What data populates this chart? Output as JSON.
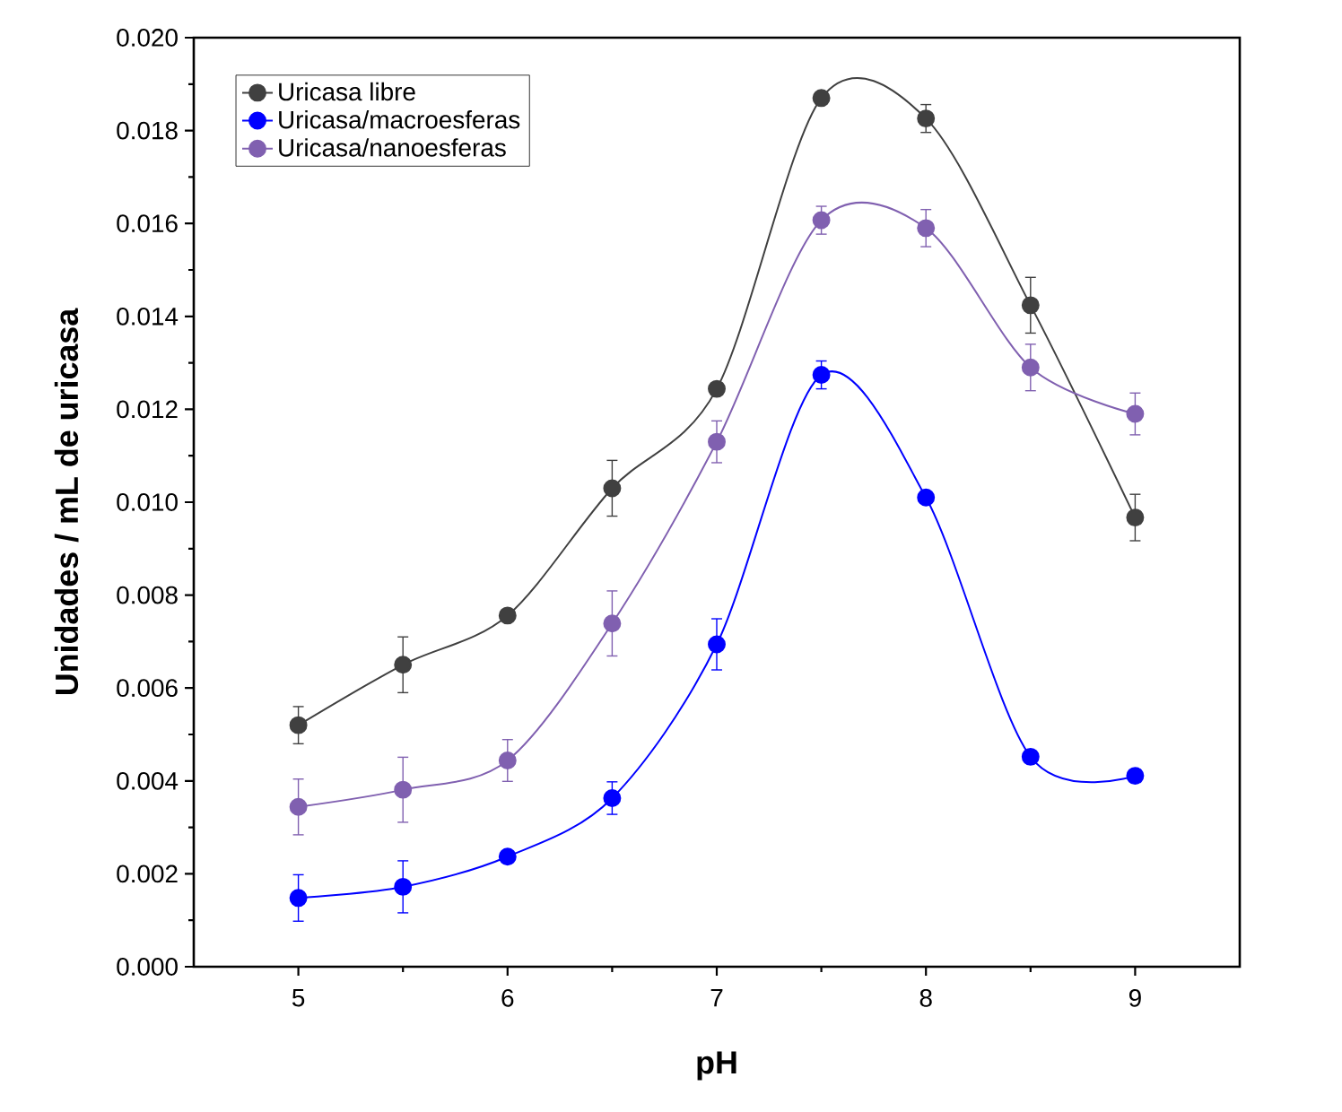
{
  "chart_data": {
    "type": "line",
    "xlabel": "pH",
    "ylabel": "Unidades / mL de uricasa",
    "x": [
      5,
      5.5,
      6,
      6.5,
      7,
      7.5,
      8,
      8.5,
      9
    ],
    "series": [
      {
        "name": "Uricasa libre",
        "color": "#404040",
        "values": [
          0.0052,
          0.0065,
          0.00756,
          0.0103,
          0.01244,
          0.0187,
          0.01826,
          0.01424,
          0.00967
        ],
        "errors": [
          0.0004,
          0.0006,
          null,
          0.0006,
          null,
          null,
          0.0003,
          0.0006,
          0.0005
        ]
      },
      {
        "name": "Uricasa/macroesferas",
        "color": "#0000ff",
        "values": [
          0.00148,
          0.00172,
          0.00237,
          0.00363,
          0.00694,
          0.01274,
          0.0101,
          0.00452,
          0.00411
        ],
        "errors": [
          0.0005,
          0.00056,
          null,
          0.00035,
          0.00055,
          0.0003,
          null,
          null,
          null
        ]
      },
      {
        "name": "Uricasa/nanoesferas",
        "color": "#8060b0",
        "values": [
          0.00344,
          0.00381,
          0.00444,
          0.00739,
          0.0113,
          0.01607,
          0.0159,
          0.0129,
          0.0119
        ],
        "errors": [
          0.0006,
          0.0007,
          0.00045,
          0.0007,
          0.00045,
          0.0003,
          0.0004,
          0.0005,
          0.00045
        ]
      }
    ],
    "xlim": [
      4.5,
      9.5
    ],
    "xticks": [
      5,
      6,
      7,
      8,
      9
    ],
    "ylim": [
      0,
      0.02
    ],
    "yticks": [
      {
        "value": 0,
        "label": "0.000"
      },
      {
        "value": 0.002,
        "label": "0.002"
      },
      {
        "value": 0.004,
        "label": "0.004"
      },
      {
        "value": 0.006,
        "label": "0.006"
      },
      {
        "value": 0.008,
        "label": "0.008"
      },
      {
        "value": 0.01,
        "label": "0.010"
      },
      {
        "value": 0.012,
        "label": "0.012"
      },
      {
        "value": 0.014,
        "label": "0.014"
      },
      {
        "value": 0.016,
        "label": "0.016"
      },
      {
        "value": 0.018,
        "label": "0.018"
      },
      {
        "value": 0.02,
        "label": "0.020"
      }
    ],
    "legend": "top left",
    "marker": "circle",
    "line_style": "solid",
    "grid": false
  }
}
